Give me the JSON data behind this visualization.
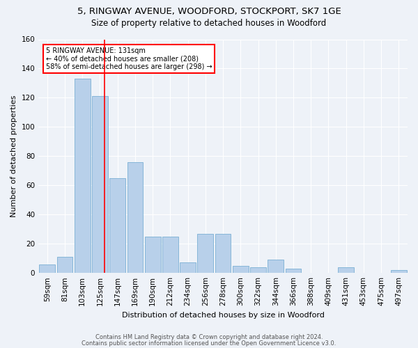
{
  "title1": "5, RINGWAY AVENUE, WOODFORD, STOCKPORT, SK7 1GE",
  "title2": "Size of property relative to detached houses in Woodford",
  "xlabel": "Distribution of detached houses by size in Woodford",
  "ylabel": "Number of detached properties",
  "categories": [
    "59sqm",
    "81sqm",
    "103sqm",
    "125sqm",
    "147sqm",
    "169sqm",
    "190sqm",
    "212sqm",
    "234sqm",
    "256sqm",
    "278sqm",
    "300sqm",
    "322sqm",
    "344sqm",
    "366sqm",
    "388sqm",
    "409sqm",
    "431sqm",
    "453sqm",
    "475sqm",
    "497sqm"
  ],
  "values": [
    6,
    11,
    133,
    121,
    65,
    76,
    25,
    25,
    7,
    27,
    27,
    5,
    4,
    9,
    3,
    0,
    0,
    4,
    0,
    0,
    2
  ],
  "bar_color": "#b8d0ea",
  "bar_edge_color": "#7aafd4",
  "annotation_line1": "5 RINGWAY AVENUE: 131sqm",
  "annotation_line2": "← 40% of detached houses are smaller (208)",
  "annotation_line3": "58% of semi-detached houses are larger (298) →",
  "annotation_box_color": "white",
  "annotation_box_edge": "red",
  "footer1": "Contains HM Land Registry data © Crown copyright and database right 2024.",
  "footer2": "Contains public sector information licensed under the Open Government Licence v3.0.",
  "ylim": [
    0,
    160
  ],
  "yticks": [
    0,
    20,
    40,
    60,
    80,
    100,
    120,
    140,
    160
  ],
  "background_color": "#eef2f8",
  "grid_color": "#ffffff",
  "title_fontsize": 9.5,
  "subtitle_fontsize": 8.5,
  "axis_label_fontsize": 8,
  "tick_fontsize": 7.5,
  "footer_fontsize": 6,
  "red_line_index": 3.27
}
